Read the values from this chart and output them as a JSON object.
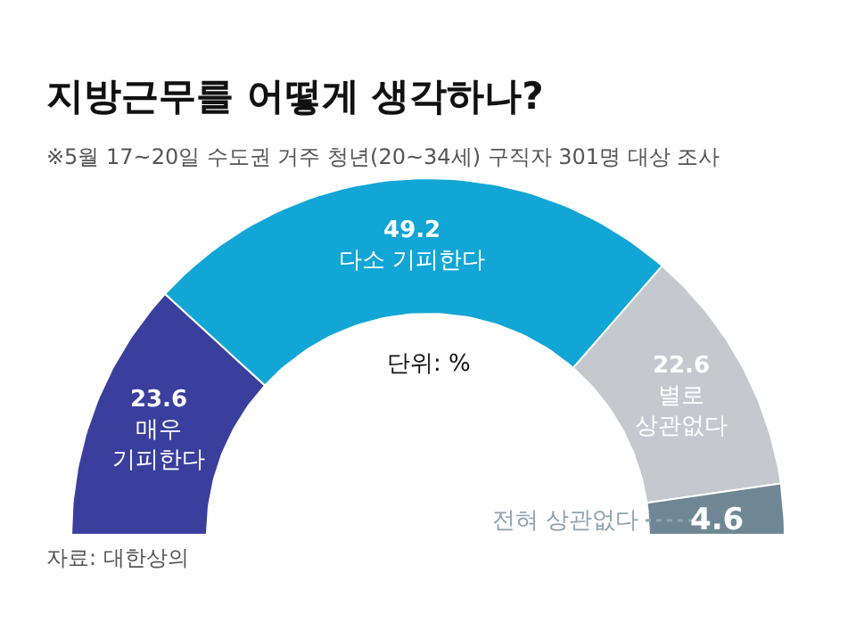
{
  "chart_data": {
    "type": "donut",
    "title": "지방근무를 어떻게 생각하나?",
    "subtitle": "※5월 17~20일 수도권 거주 청년(20~34세) 구직자 301명 대상 조사",
    "categories": [
      "매우\n기피한다",
      "다소 기피한다",
      "별로\n상관없다",
      "전혀 상관없다"
    ],
    "values": [
      23.6,
      49.2,
      22.6,
      4.6
    ],
    "colors": [
      "#3a3f9e",
      "#12a6d6",
      "#c5c9cf",
      "#6f8795"
    ],
    "data_labels": true,
    "legend": false,
    "annotations": [
      "단위: %",
      "자료: 대한상의"
    ]
  }
}
